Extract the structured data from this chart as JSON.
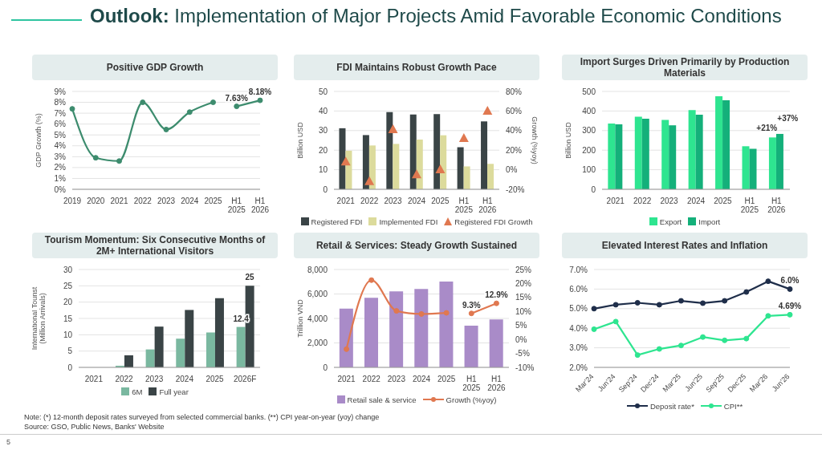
{
  "chart_data": [
    {
      "type": "line",
      "title": "Positive GDP Growth",
      "annotations": [
        "Outlook: Implementation of Major Projects Amid Favorable Economic Conditions"
      ],
      "ylabel": "GDP Growth (%)",
      "categories": [
        "2019",
        "2020",
        "2021",
        "2022",
        "2023",
        "2024",
        "2025",
        "H1 2025",
        "H1 2026"
      ],
      "series": [
        {
          "color": "#3d8c6e",
          "values": [
            7.4,
            2.9,
            2.6,
            8.0,
            5.5,
            7.1,
            8.0,
            null,
            null
          ]
        },
        {
          "color": "#3d8c6e",
          "values": [
            null,
            null,
            null,
            null,
            null,
            null,
            null,
            7.63,
            8.18
          ],
          "value_labels": [
            null,
            null,
            null,
            null,
            null,
            null,
            null,
            "7.63%",
            "8.18%"
          ]
        }
      ],
      "ylim": [
        0,
        9
      ],
      "yticks": [
        {
          "value": 0,
          "label": "0%"
        },
        {
          "value": 1,
          "label": "1%"
        },
        {
          "value": 2,
          "label": "2%"
        },
        {
          "value": 3,
          "label": "3%"
        },
        {
          "value": 4,
          "label": "4%"
        },
        {
          "value": 5,
          "label": "5%"
        },
        {
          "value": 6,
          "label": "6%"
        },
        {
          "value": 7,
          "label": "7%"
        },
        {
          "value": 8,
          "label": "8%"
        },
        {
          "value": 9,
          "label": "9%"
        }
      ],
      "grid": "y",
      "marker": "circle",
      "legend": false
    },
    {
      "type": "bar",
      "title": "FDI Maintains Robust Growth Pace",
      "ylabel": "Billion USD",
      "y2label": "Growth (%yoy)",
      "categories": [
        "2021",
        "2022",
        "2023",
        "2024",
        "2025",
        "H1 2025",
        "H1 2026"
      ],
      "series": [
        {
          "name": "Registered FDI",
          "color": "#3a4446",
          "values": [
            31.2,
            27.7,
            39.4,
            38.2,
            38.4,
            21.5,
            34.7
          ]
        },
        {
          "name": "Implemented FDI",
          "color": "#dcdb9c",
          "values": [
            19.7,
            22.4,
            23.2,
            25.4,
            27.6,
            11.7,
            13.0
          ]
        },
        {
          "name": "Registered FDI Growth",
          "type": "scatter",
          "axis": "y2",
          "color": "#e07850",
          "values": [
            8,
            -12,
            41,
            -5,
            0,
            32,
            60
          ]
        }
      ],
      "ylim": [
        0,
        50
      ],
      "yticks": [
        0,
        10,
        20,
        30,
        40,
        50
      ],
      "y2lim": [
        -20,
        80
      ],
      "y2ticks": [
        {
          "value": -20,
          "label": "-20%"
        },
        {
          "value": 0,
          "label": "0%"
        },
        {
          "value": 20,
          "label": "20%"
        },
        {
          "value": 40,
          "label": "40%"
        },
        {
          "value": 60,
          "label": "60%"
        },
        {
          "value": 80,
          "label": "80%"
        }
      ],
      "grid": "y",
      "marker": "triangle",
      "legend": "bottom"
    },
    {
      "type": "bar",
      "title": "Import Surges Driven Primarily by Production Materials",
      "ylabel": "Billion USD",
      "categories": [
        "2021",
        "2022",
        "2023",
        "2024",
        "2025",
        "H1 2025",
        "H1 2026"
      ],
      "annotations": [
        {
          "text": "+21%",
          "x": "H1 2026",
          "y": 265
        },
        {
          "text": "+37%",
          "x": "H1 2026",
          "y": 283
        }
      ],
      "series": [
        {
          "name": "Export",
          "color": "#2ee590",
          "values": [
            336,
            371,
            355,
            405,
            475,
            220,
            265
          ]
        },
        {
          "name": "Import",
          "color": "#14b07a",
          "values": [
            332,
            361,
            327,
            381,
            455,
            207,
            283
          ]
        }
      ],
      "ylim": [
        0,
        500
      ],
      "yticks": [
        0,
        100,
        200,
        300,
        400,
        500
      ],
      "grid": "y",
      "legend": "bottom"
    },
    {
      "type": "bar",
      "title": "Tourism Momentum: Six Consecutive Months of 2M+ International Visitors",
      "ylabel": "International Tourist\n(Million Arrivals)",
      "categories": [
        "2021",
        "2022",
        "2023",
        "2024",
        "2025",
        "2026F"
      ],
      "series": [
        {
          "name": "6M",
          "color": "#7ab8a0",
          "values": [
            0,
            0.5,
            5.5,
            8.8,
            10.7,
            12.4
          ],
          "value_labels": [
            null,
            null,
            null,
            null,
            null,
            "12.4"
          ]
        },
        {
          "name": "Full year",
          "color": "#3a4446",
          "values": [
            0,
            3.7,
            12.5,
            17.6,
            21.2,
            25
          ],
          "value_labels": [
            null,
            null,
            null,
            null,
            null,
            "25"
          ]
        }
      ],
      "ylim": [
        0,
        30
      ],
      "yticks": [
        0,
        5,
        10,
        15,
        20,
        25,
        30
      ],
      "grid": "y",
      "legend": "bottom"
    },
    {
      "type": "bar",
      "title": "Retail & Services: Steady Growth Sustained",
      "ylabel": "Trillion VND",
      "categories": [
        "2021",
        "2022",
        "2023",
        "2024",
        "2025",
        "H1 2025",
        "H1 2026"
      ],
      "series": [
        {
          "name": "Retail sale & service",
          "color": "#a98bc8",
          "values": [
            4800,
            5690,
            6220,
            6410,
            7010,
            3410,
            3910
          ]
        },
        {
          "name": "Growth (%yoy)",
          "type": "line",
          "axis": "y2",
          "color": "#e07850",
          "values": [
            -3.5,
            21.2,
            10.2,
            9.1,
            9.5,
            null,
            null
          ]
        },
        {
          "type": "line",
          "axis": "y2",
          "color": "#e07850",
          "values": [
            null,
            null,
            null,
            null,
            null,
            9.3,
            12.9
          ],
          "value_labels": [
            null,
            null,
            null,
            null,
            null,
            "9.3%",
            "12.9%"
          ]
        }
      ],
      "ylim": [
        0,
        8000
      ],
      "yticks": [
        {
          "value": 0,
          "label": "0"
        },
        {
          "value": 2000,
          "label": "2,000"
        },
        {
          "value": 4000,
          "label": "4,000"
        },
        {
          "value": 6000,
          "label": "6,000"
        },
        {
          "value": 8000,
          "label": "8,000"
        }
      ],
      "y2lim": [
        -10,
        25
      ],
      "y2ticks": [
        {
          "value": -10,
          "label": "-10%"
        },
        {
          "value": -5,
          "label": "-5%"
        },
        {
          "value": 0,
          "label": "0%"
        },
        {
          "value": 5,
          "label": "5%"
        },
        {
          "value": 10,
          "label": "10%"
        },
        {
          "value": 15,
          "label": "15%"
        },
        {
          "value": 20,
          "label": "20%"
        },
        {
          "value": 25,
          "label": "25%"
        }
      ],
      "grid": "y",
      "marker": "circle",
      "legend": "bottom"
    },
    {
      "type": "line",
      "title": "Elevated Interest Rates and Inflation",
      "annotations": [
        "Note: (*) 12-month deposit rates surveyed from selected commercial banks. (**) CPI year-on-year (yoy) change",
        "Source: GSO, Public News, Banks' Website",
        "5"
      ],
      "categories": [
        "Mar'24",
        "Jun'24",
        "Sep'24",
        "Dec'24",
        "Mar'25",
        "Jun'25",
        "Sep'25",
        "Dec'25",
        "Mar'26",
        "Jun'26"
      ],
      "series": [
        {
          "name": "Deposit rate*",
          "color": "#1f2e4a",
          "values": [
            5.0,
            5.2,
            5.3,
            5.2,
            5.4,
            5.28,
            5.4,
            5.85,
            6.4,
            6.0
          ],
          "value_labels": [
            null,
            null,
            null,
            null,
            null,
            null,
            null,
            null,
            null,
            "6.0%"
          ]
        },
        {
          "name": "CPI**",
          "color": "#2ee590",
          "values": [
            3.95,
            4.34,
            2.63,
            2.94,
            3.12,
            3.55,
            3.38,
            3.47,
            4.63,
            4.69
          ],
          "value_labels": [
            null,
            null,
            null,
            null,
            null,
            null,
            null,
            null,
            null,
            "4.69%"
          ]
        }
      ],
      "ylim": [
        2,
        7
      ],
      "yticks": [
        {
          "value": 2,
          "label": "2.0%"
        },
        {
          "value": 3,
          "label": "3.0%"
        },
        {
          "value": 4,
          "label": "4.0%"
        },
        {
          "value": 5,
          "label": "5.0%"
        },
        {
          "value": 6,
          "label": "6.0%"
        },
        {
          "value": 7,
          "label": "7.0%"
        }
      ],
      "grid": "y",
      "marker": "circle",
      "legend": "bottom"
    }
  ]
}
